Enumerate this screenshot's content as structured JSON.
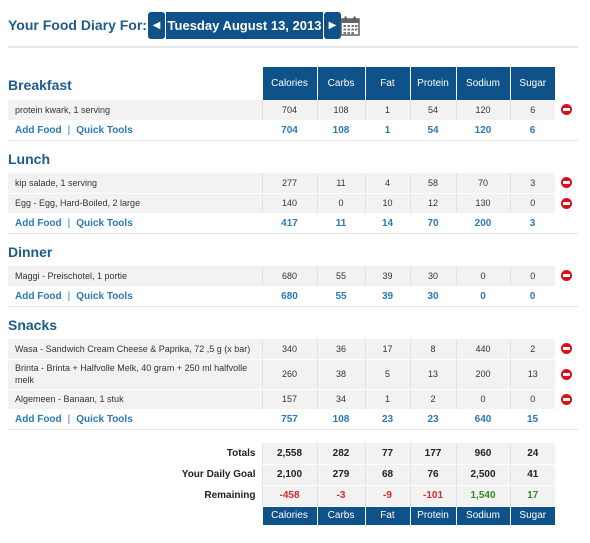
{
  "header": {
    "title": "Your Food Diary For:",
    "date": "Tuesday August 13, 2013",
    "prev_icon": "chevron-left-icon",
    "next_icon": "chevron-right-icon",
    "calendar_icon": "calendar-icon"
  },
  "columns": [
    "Calories",
    "Carbs",
    "Fat",
    "Protein",
    "Sodium",
    "Sugar"
  ],
  "add_food_label": "Add Food",
  "quick_tools_label": "Quick Tools",
  "separator": "|",
  "meals": {
    "breakfast": {
      "name": "Breakfast",
      "items": [
        {
          "name": "protein kwark, 1 serving",
          "values": [
            "704",
            "108",
            "1",
            "54",
            "120",
            "6"
          ]
        }
      ],
      "totals": [
        "704",
        "108",
        "1",
        "54",
        "120",
        "6"
      ]
    },
    "lunch": {
      "name": "Lunch",
      "items": [
        {
          "name": "kip salade, 1 serving",
          "values": [
            "277",
            "11",
            "4",
            "58",
            "70",
            "3"
          ]
        },
        {
          "name": "Egg - Egg, Hard-Boiled, 2 large",
          "values": [
            "140",
            "0",
            "10",
            "12",
            "130",
            "0"
          ]
        }
      ],
      "totals": [
        "417",
        "11",
        "14",
        "70",
        "200",
        "3"
      ]
    },
    "dinner": {
      "name": "Dinner",
      "items": [
        {
          "name": "Maggi - Preischotel, 1 portie",
          "values": [
            "680",
            "55",
            "39",
            "30",
            "0",
            "0"
          ]
        }
      ],
      "totals": [
        "680",
        "55",
        "39",
        "30",
        "0",
        "0"
      ]
    },
    "snacks": {
      "name": "Snacks",
      "items": [
        {
          "name": "Wasa - Sandwich Cream Cheese & Paprika, 72 ,5 g (x bar)",
          "values": [
            "340",
            "36",
            "17",
            "8",
            "440",
            "2"
          ]
        },
        {
          "name": "Brinta - Brinta + Halfvolle Melk, 40 gram + 250 ml halfvolle melk",
          "values": [
            "260",
            "38",
            "5",
            "13",
            "200",
            "13"
          ]
        },
        {
          "name": "Algemeen - Banaan, 1 stuk",
          "values": [
            "157",
            "34",
            "1",
            "2",
            "0",
            "0"
          ]
        }
      ],
      "totals": [
        "757",
        "108",
        "23",
        "23",
        "640",
        "15"
      ]
    }
  },
  "summary": {
    "totals": {
      "label": "Totals",
      "values": [
        "2,558",
        "282",
        "77",
        "177",
        "960",
        "24"
      ]
    },
    "goal": {
      "label": "Your Daily Goal",
      "values": [
        "2,100",
        "279",
        "68",
        "76",
        "2,500",
        "41"
      ]
    },
    "remaining": {
      "label": "Remaining",
      "values": [
        "-458",
        "-3",
        "-9",
        "-101",
        "1,540",
        "17"
      ]
    }
  },
  "colors": {
    "header_blue": "#0f5289",
    "title_blue": "#1d5c8c",
    "link_blue": "#2a7ab8",
    "negative": "#d82a2a",
    "positive": "#2f8e25",
    "delete_red": "#d8101a"
  }
}
